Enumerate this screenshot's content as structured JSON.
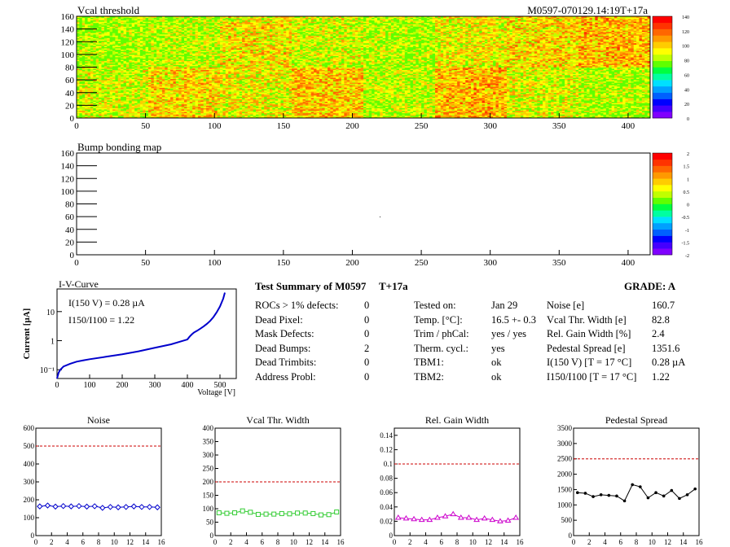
{
  "colors": {
    "accent_blue": "#0000cc",
    "ref_line": "#cc0000",
    "green": "#33cc33",
    "magenta": "#cc00cc"
  },
  "summary": {
    "title": "Test Summary of M0597",
    "tag": "T+17a",
    "grade": "GRADE:  A",
    "defects": [
      {
        "label": "ROCs > 1% defects:",
        "value": "0"
      },
      {
        "label": "Dead Pixel:",
        "value": "0"
      },
      {
        "label": "Mask Defects:",
        "value": "0"
      },
      {
        "label": "Dead Bumps:",
        "value": "2"
      },
      {
        "label": "Dead Trimbits:",
        "value": "0"
      },
      {
        "label": "Address Probl:",
        "value": "0"
      }
    ],
    "conditions": [
      {
        "label": "Tested on:",
        "value": "Jan 29"
      },
      {
        "label": "Temp. [°C]:",
        "value": "16.5 +- 0.3"
      },
      {
        "label": "Trim / phCal:",
        "value": "yes / yes"
      },
      {
        "label": "Therm. cycl.:",
        "value": "yes"
      },
      {
        "label": "TBM1:",
        "value": "ok"
      },
      {
        "label": "TBM2:",
        "value": "ok"
      }
    ],
    "results": [
      {
        "label": "Noise [e]",
        "value": "160.7"
      },
      {
        "label": "Vcal Thr. Width [e]",
        "value": "82.8"
      },
      {
        "label": "Rel. Gain Width [%]",
        "value": "2.4"
      },
      {
        "label": "Pedestal Spread [e]",
        "value": "1351.6"
      },
      {
        "label": "I(150 V) [T = 17 °C]",
        "value": "0.28 µA"
      },
      {
        "label": "I150/I100  [T = 17 °C]",
        "value": "1.22"
      }
    ]
  },
  "chart_data": [
    {
      "type": "heatmap",
      "title": "Vcal threshold",
      "header_right": "M0597-070129.14:19T+17a",
      "x_ticks": [
        0,
        50,
        100,
        150,
        200,
        250,
        300,
        350,
        400
      ],
      "y_ticks": [
        0,
        20,
        40,
        60,
        80,
        100,
        120,
        140,
        160
      ],
      "xlim": [
        0,
        416
      ],
      "ylim": [
        0,
        160
      ],
      "z_ticks": [
        0,
        20,
        40,
        60,
        80,
        100,
        120,
        140
      ],
      "zlim": [
        0,
        140
      ]
    },
    {
      "type": "heatmap",
      "title": "Bump bonding map",
      "x_ticks": [
        0,
        50,
        100,
        150,
        200,
        250,
        300,
        350,
        400
      ],
      "y_ticks": [
        0,
        20,
        40,
        60,
        80,
        100,
        120,
        140,
        160
      ],
      "xlim": [
        0,
        416
      ],
      "ylim": [
        0,
        160
      ],
      "z_ticks": [
        -2,
        -1.5,
        -1,
        -0.5,
        0,
        0.5,
        1,
        1.5,
        2
      ],
      "zlim": [
        -2,
        2
      ]
    },
    {
      "type": "line",
      "title": "I-V-Curve",
      "xlabel": "Voltage [V]",
      "ylabel": "Current [µA]",
      "x_ticks": [
        0,
        100,
        200,
        300,
        400,
        500
      ],
      "y_ticks": [
        "10⁻¹",
        "1",
        "10"
      ],
      "xlim": [
        0,
        550
      ],
      "ylim": [
        0.05,
        60
      ],
      "y_scale": "log",
      "annotation_1": "I(150 V) = 0.28 µA",
      "annotation_2": "I150/I100 =  1.22",
      "x": [
        0,
        5,
        10,
        20,
        40,
        60,
        80,
        100,
        150,
        200,
        250,
        300,
        350,
        400,
        405,
        410,
        415,
        420,
        430,
        440,
        450,
        460,
        470,
        480,
        490,
        500,
        510,
        515
      ],
      "y": [
        0.05,
        0.08,
        0.1,
        0.13,
        0.16,
        0.19,
        0.21,
        0.23,
        0.28,
        0.34,
        0.43,
        0.57,
        0.75,
        1.1,
        1.3,
        1.5,
        1.7,
        1.9,
        2.2,
        2.6,
        3.1,
        3.8,
        4.8,
        6.5,
        9.5,
        15,
        28,
        45
      ]
    },
    {
      "type": "line",
      "title": "Noise",
      "x": [
        0.5,
        1.5,
        2.5,
        3.5,
        4.5,
        5.5,
        6.5,
        7.5,
        8.5,
        9.5,
        10.5,
        11.5,
        12.5,
        13.5,
        14.5,
        15.5
      ],
      "y": [
        163,
        168,
        162,
        165,
        163,
        165,
        162,
        164,
        155,
        160,
        158,
        160,
        163,
        160,
        160,
        158
      ],
      "xlim": [
        0,
        16
      ],
      "ylim": [
        0,
        600
      ],
      "ref": 500,
      "x_ticks": [
        0,
        2,
        4,
        6,
        8,
        10,
        12,
        14,
        16
      ],
      "y_ticks": [
        0,
        100,
        200,
        300,
        400,
        500,
        600
      ],
      "marker": "diamond",
      "color": "#0000cc"
    },
    {
      "type": "line",
      "title": "Vcal Thr. Width",
      "x": [
        0.5,
        1.5,
        2.5,
        3.5,
        4.5,
        5.5,
        6.5,
        7.5,
        8.5,
        9.5,
        10.5,
        11.5,
        12.5,
        13.5,
        14.5,
        15.5
      ],
      "y": [
        85,
        83,
        85,
        92,
        87,
        79,
        80,
        80,
        82,
        81,
        84,
        84,
        82,
        77,
        78,
        88
      ],
      "xlim": [
        0,
        16
      ],
      "ylim": [
        0,
        400
      ],
      "ref": 200,
      "x_ticks": [
        0,
        2,
        4,
        6,
        8,
        10,
        12,
        14,
        16
      ],
      "y_ticks": [
        0,
        50,
        100,
        150,
        200,
        250,
        300,
        350,
        400
      ],
      "marker": "square",
      "color": "#33cc33"
    },
    {
      "type": "line",
      "title": "Rel. Gain Width",
      "x": [
        0.5,
        1.5,
        2.5,
        3.5,
        4.5,
        5.5,
        6.5,
        7.5,
        8.5,
        9.5,
        10.5,
        11.5,
        12.5,
        13.5,
        14.5,
        15.5
      ],
      "y": [
        0.025,
        0.024,
        0.023,
        0.022,
        0.022,
        0.025,
        0.027,
        0.03,
        0.025,
        0.025,
        0.022,
        0.024,
        0.022,
        0.02,
        0.021,
        0.025
      ],
      "xlim": [
        0,
        16
      ],
      "ylim": [
        0,
        0.15
      ],
      "ref": 0.1,
      "x_ticks": [
        0,
        2,
        4,
        6,
        8,
        10,
        12,
        14,
        16
      ],
      "y_ticks": [
        0,
        0.02,
        0.04,
        0.06,
        0.08,
        0.1,
        0.12,
        0.14
      ],
      "marker": "triangle",
      "color": "#cc00cc"
    },
    {
      "type": "line",
      "title": "Pedestal Spread",
      "x": [
        0.5,
        1.5,
        2.5,
        3.5,
        4.5,
        5.5,
        6.5,
        7.5,
        8.5,
        9.5,
        10.5,
        11.5,
        12.5,
        13.5,
        14.5,
        15.5
      ],
      "y": [
        1400,
        1380,
        1270,
        1330,
        1310,
        1290,
        1130,
        1660,
        1590,
        1230,
        1400,
        1290,
        1470,
        1210,
        1330,
        1520
      ],
      "xlim": [
        0,
        16
      ],
      "ylim": [
        0,
        3500
      ],
      "ref": 2500,
      "x_ticks": [
        0,
        2,
        4,
        6,
        8,
        10,
        12,
        14,
        16
      ],
      "y_ticks": [
        0,
        500,
        1000,
        1500,
        2000,
        2500,
        3000,
        3500
      ],
      "marker": "dot",
      "color": "#000000"
    }
  ]
}
